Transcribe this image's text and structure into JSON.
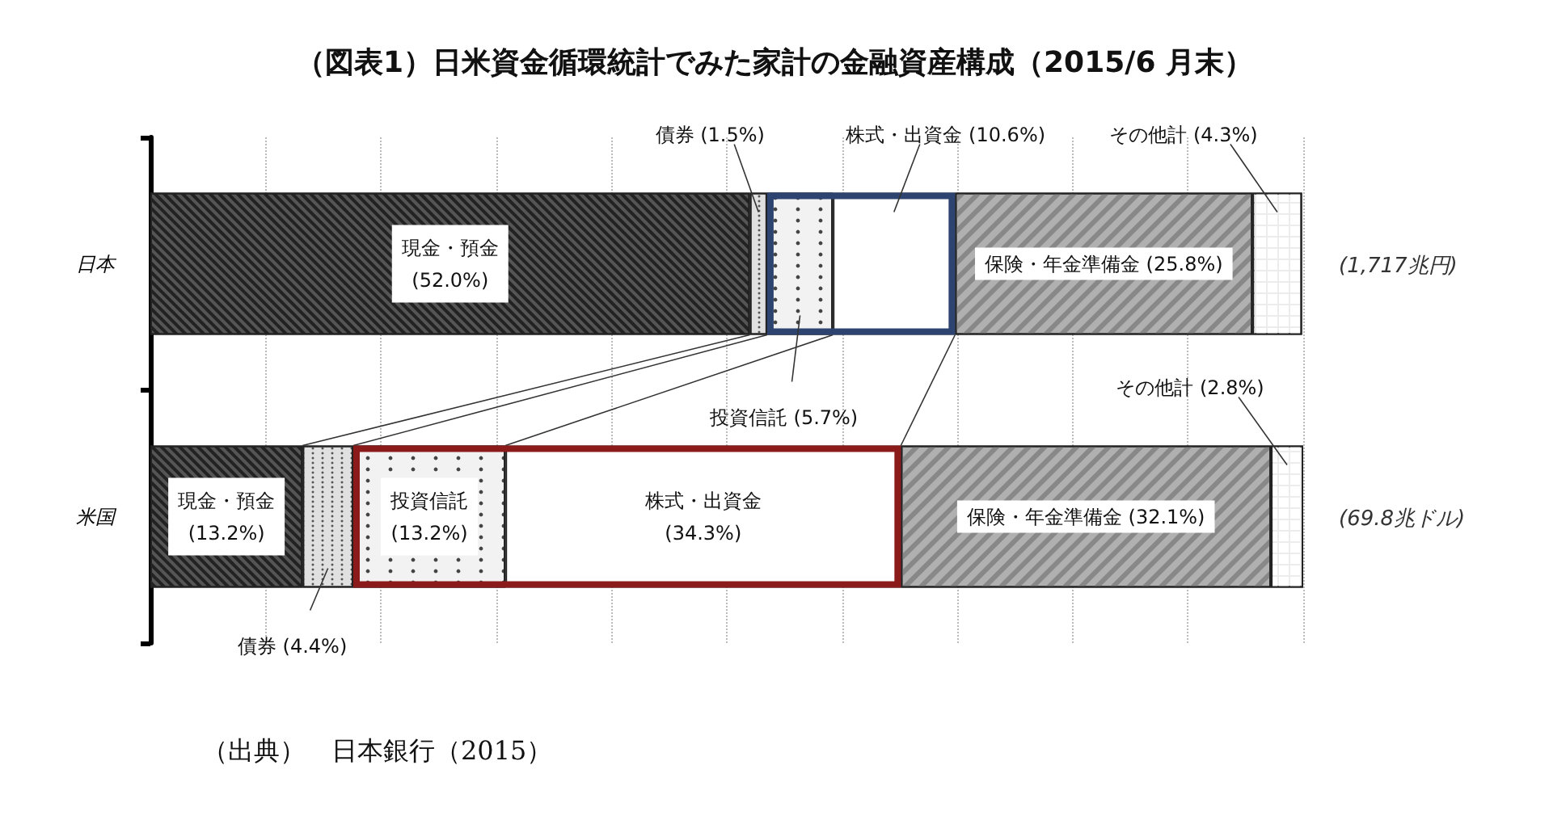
{
  "chart_data": {
    "type": "bar",
    "orientation": "horizontal",
    "stacked": true,
    "title": "（図表1）日米資金循環統計でみた家計の金融資産構成（2015/6 月末）",
    "categories": [
      "日本",
      "米国"
    ],
    "series": [
      {
        "name": "現金・預金",
        "color": "#555555",
        "values": [
          52.0,
          13.2
        ],
        "value_labels": [
          "(52.0%)",
          "(13.2%)"
        ]
      },
      {
        "name": "債券",
        "color": "#e0e0e0",
        "values": [
          1.5,
          4.4
        ],
        "value_labels": [
          "(1.5%)",
          "(4.4%)"
        ]
      },
      {
        "name": "投資信託",
        "color": "#f2f2f2",
        "values": [
          5.7,
          13.2
        ],
        "value_labels": [
          "(5.7%)",
          "(13.2%)"
        ]
      },
      {
        "name": "株式・出資金",
        "color": "#ffffff",
        "values": [
          10.6,
          34.3
        ],
        "value_labels": [
          "(10.6%)",
          "(34.3%)"
        ]
      },
      {
        "name": "保険・年金準備金",
        "color": "#b0b0b0",
        "values": [
          25.8,
          32.1
        ],
        "value_labels": [
          "(25.8%)",
          "(32.1%)"
        ]
      },
      {
        "name": "その他計",
        "color": "#ececec",
        "values": [
          4.3,
          2.8
        ],
        "value_labels": [
          "(4.3%)",
          "(2.8%)"
        ]
      }
    ],
    "xlim": [
      0,
      100
    ],
    "xticks": [
      {
        "value": 0,
        "label": null
      },
      {
        "value": 10,
        "label": null
      },
      {
        "value": 20,
        "label": null
      },
      {
        "value": 30,
        "label": null
      },
      {
        "value": 40,
        "label": null
      },
      {
        "value": 50,
        "label": null
      },
      {
        "value": 60,
        "label": null
      },
      {
        "value": 70,
        "label": null
      },
      {
        "value": 80,
        "label": null
      },
      {
        "value": 90,
        "label": null
      },
      {
        "value": 100,
        "label": null
      }
    ],
    "tick_labels": "y",
    "grid": "x",
    "legend": false,
    "annotations": [
      "(1,717兆円)",
      "(69.8兆ドル)",
      "（出典）　日本銀行（2015）"
    ]
  }
}
